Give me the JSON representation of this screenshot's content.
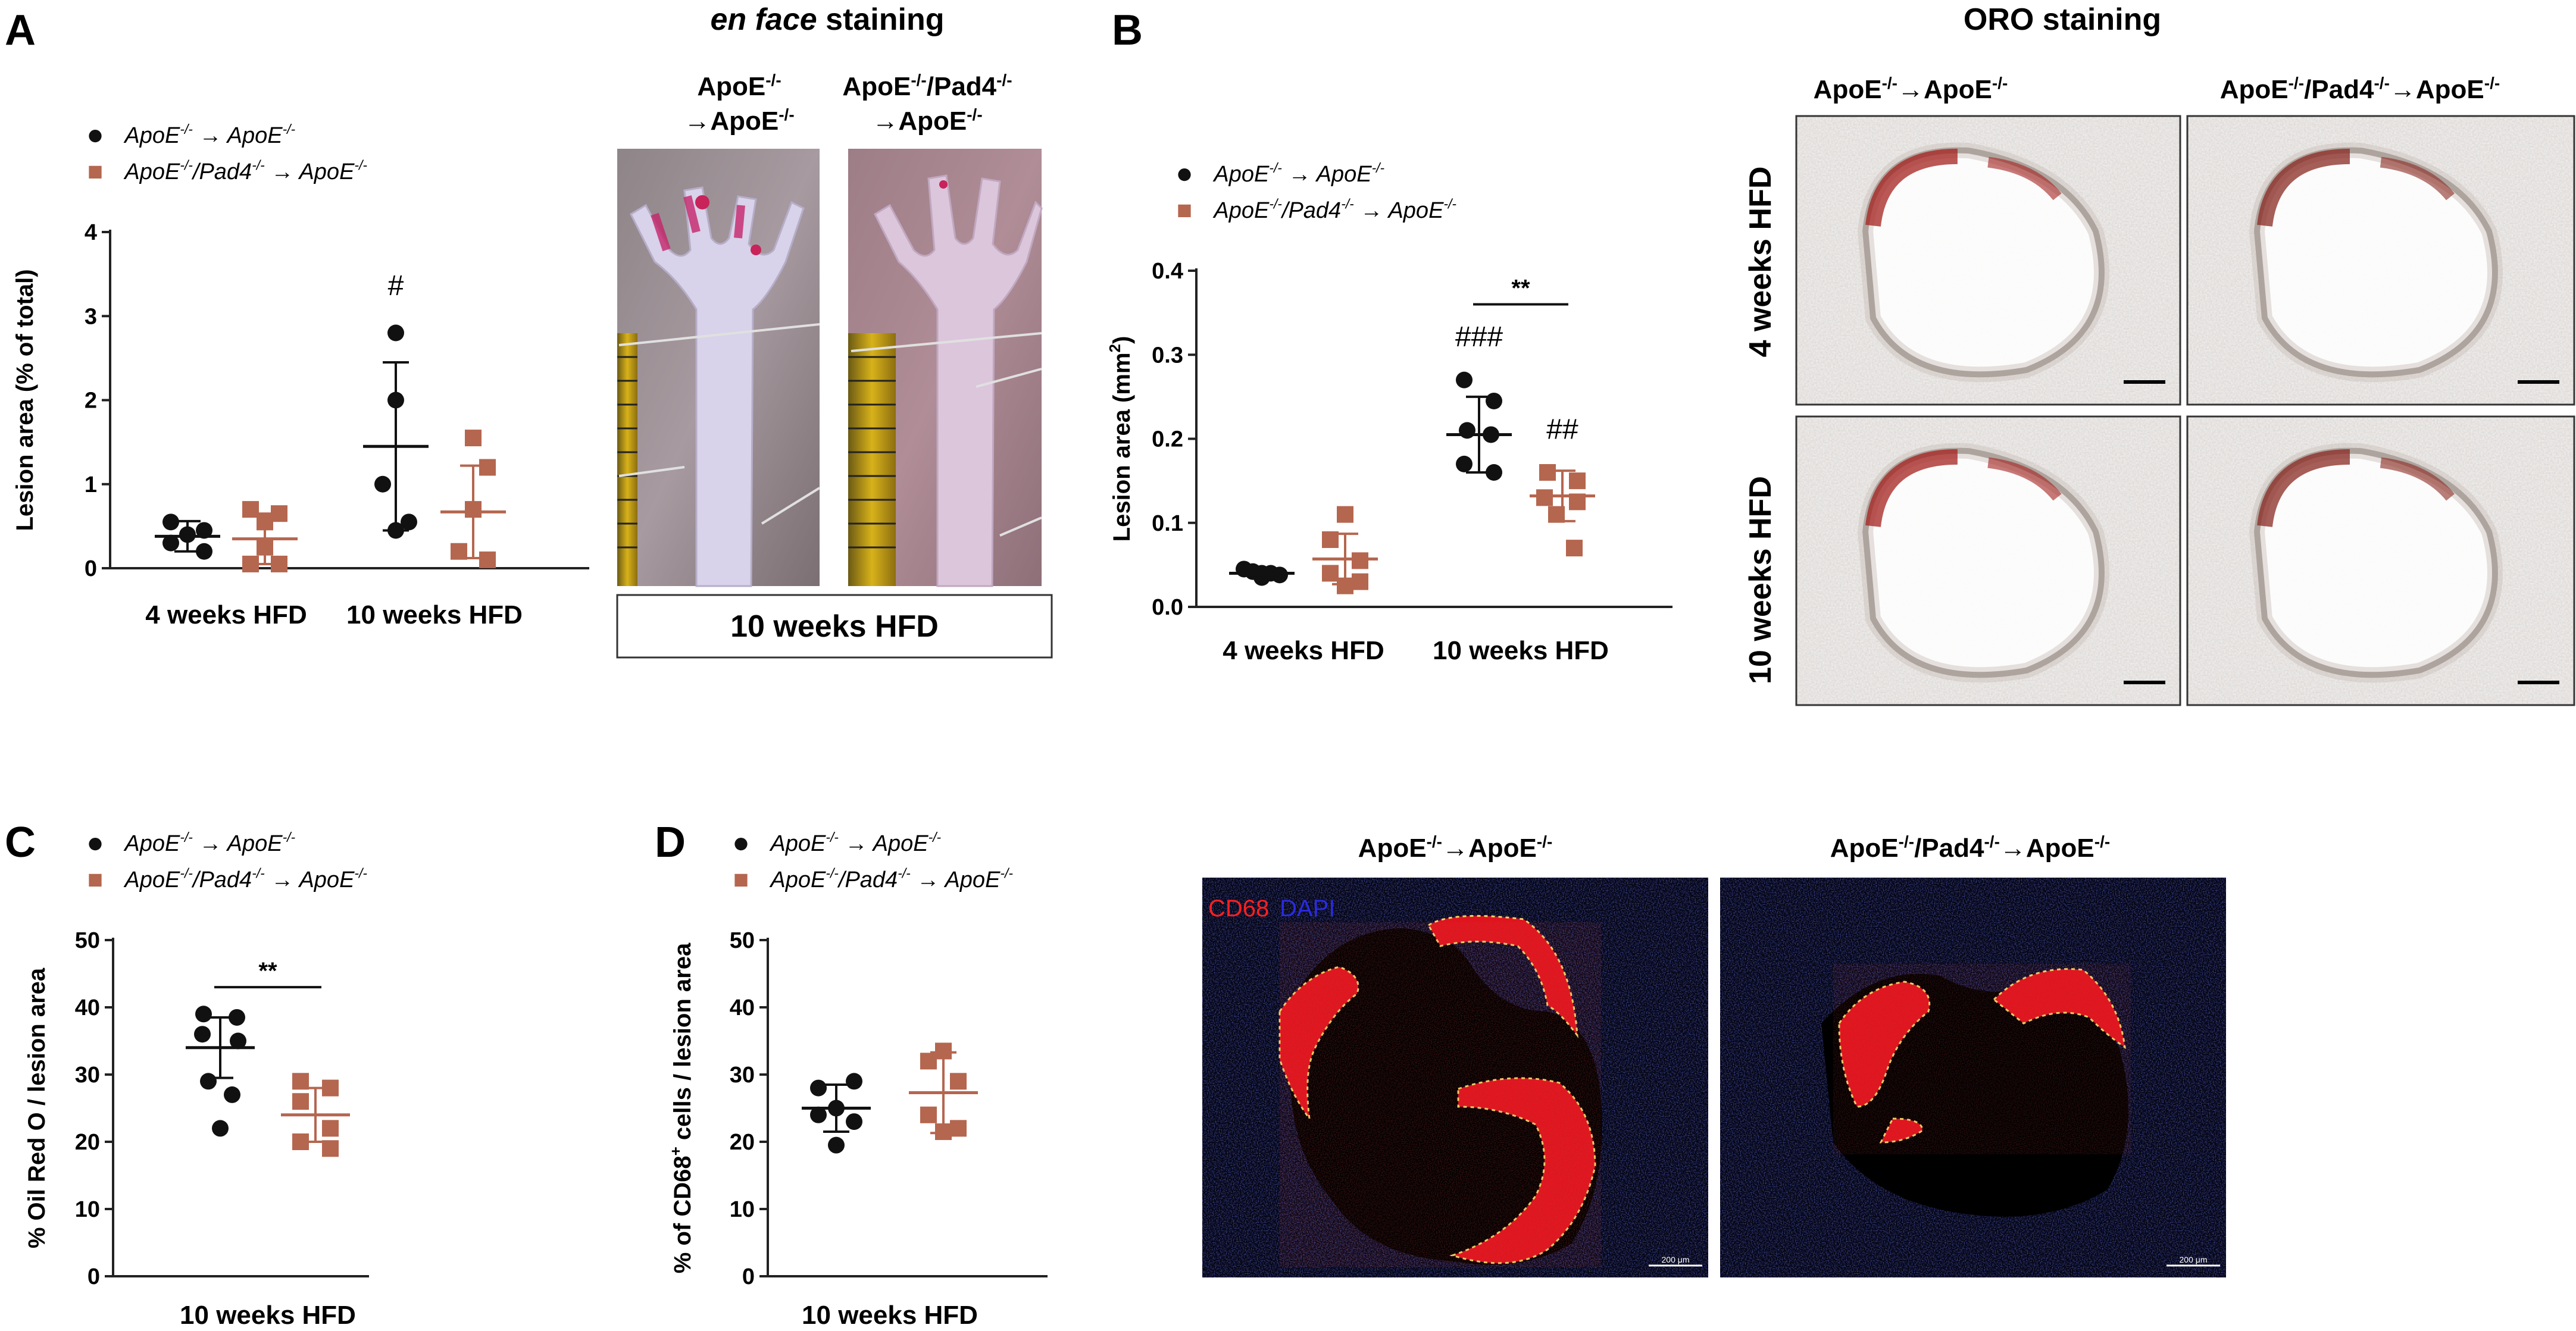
{
  "figure": {
    "panel_letters": [
      "A",
      "B",
      "C",
      "D"
    ],
    "legend": {
      "control": {
        "base": "ApoE",
        "sup": "-/-",
        "arrow": " → ",
        "base2": "ApoE",
        "sup2": "-/-"
      },
      "knockout": {
        "base": "ApoE",
        "sup": "-/-",
        "mid": "/Pad4",
        "sup_mid": "-/-",
        "arrow": " → ",
        "base2": "ApoE",
        "sup2": "-/-"
      }
    },
    "colors": {
      "control": "#111111",
      "knockout": "#b5664f"
    }
  },
  "panelA": {
    "image_title": {
      "italic": "en face",
      "normal": " staining"
    },
    "image_col1": {
      "l1": "ApoE",
      "sup1": "-/-",
      "l2": "→ApoE",
      "sup2": "-/-"
    },
    "image_col2": {
      "l1": "ApoE",
      "sup1": "-/-",
      "l1b": "/Pad4",
      "sup1b": "-/-",
      "l2": "→ApoE",
      "sup2": "-/-"
    },
    "image_caption": "10 weeks HFD"
  },
  "panelB": {
    "image_title": "ORO staining",
    "col1": {
      "a": "ApoE",
      "sa": "-/-",
      "b": "→ApoE",
      "sb": "-/-"
    },
    "col2": {
      "a": "ApoE",
      "sa": "-/-",
      "a2": "/Pad4",
      "sa2": "-/-",
      "b": "→ApoE",
      "sb": "-/-"
    },
    "row_labels": [
      "4 weeks HFD",
      "10 weeks HFD"
    ]
  },
  "panelD": {
    "col1": {
      "a": "ApoE",
      "sa": "-/-",
      "b": "→ApoE",
      "sb": "-/-"
    },
    "col2": {
      "a": "ApoE",
      "sa": "-/-",
      "a2": "/Pad4",
      "sa2": "-/-",
      "b": "→ApoE",
      "sb": "-/-"
    },
    "stain_labels": [
      "CD68",
      "DAPI"
    ],
    "scale_bar": "200 μm"
  },
  "chart_data": [
    {
      "panel": "A",
      "type": "scatter",
      "ylabel": "Lesion area (% of total)",
      "ylim": [
        0,
        4
      ],
      "yticks": [
        0,
        1,
        2,
        3,
        4
      ],
      "categories": [
        "4 weeks HFD",
        "10 weeks HFD"
      ],
      "series": [
        {
          "group": "control",
          "points": [
            [
              0.55,
              0.45,
              0.4,
              0.3,
              0.2
            ],
            [
              2.8,
              2.0,
              1.0,
              0.55,
              0.45
            ]
          ],
          "mean": [
            0.38,
            1.45
          ],
          "sd": [
            0.18,
            1.0
          ]
        },
        {
          "group": "knockout",
          "points": [
            [
              0.7,
              0.65,
              0.55,
              0.25,
              0.05,
              0.05
            ],
            [
              1.55,
              1.2,
              0.7,
              0.2,
              0.1
            ]
          ],
          "mean": [
            0.35,
            0.67
          ],
          "sd": [
            0.3,
            0.55
          ]
        }
      ],
      "annotations": [
        {
          "text": "#",
          "category": 1,
          "series": "control",
          "y": 3.25
        }
      ]
    },
    {
      "panel": "B",
      "type": "scatter",
      "ylabel": "Lesion area (mm²)",
      "ylabel_parts": {
        "base": "Lesion area (mm",
        "sup": "2",
        "end": ")"
      },
      "ylim": [
        0,
        0.4
      ],
      "yticks": [
        "0.0",
        "0.1",
        "0.2",
        "0.3",
        "0.4"
      ],
      "categories": [
        "4 weeks HFD",
        "10 weeks HFD"
      ],
      "series": [
        {
          "group": "control",
          "points": [
            [
              0.045,
              0.042,
              0.04,
              0.04,
              0.038,
              0.035
            ],
            [
              0.27,
              0.245,
              0.21,
              0.205,
              0.17,
              0.16
            ]
          ],
          "mean": [
            0.04,
            0.205
          ],
          "sd": [
            0.005,
            0.045
          ]
        },
        {
          "group": "knockout",
          "points": [
            [
              0.11,
              0.08,
              0.055,
              0.04,
              0.03,
              0.025
            ],
            [
              0.16,
              0.15,
              0.13,
              0.125,
              0.11,
              0.07
            ]
          ],
          "mean": [
            0.057,
            0.132
          ],
          "sd": [
            0.03,
            0.03
          ]
        }
      ],
      "annotations": [
        {
          "text": "###",
          "category": 1,
          "series": "control",
          "y": 0.31
        },
        {
          "text": "##",
          "category": 1,
          "series": "knockout",
          "y": 0.2
        },
        {
          "text": "**",
          "category": 1,
          "bracket": true,
          "y": 0.36
        }
      ]
    },
    {
      "panel": "C",
      "type": "scatter",
      "ylabel": "% Oil Red O / lesion area",
      "ylim": [
        0,
        50
      ],
      "yticks": [
        0,
        10,
        20,
        30,
        40,
        50
      ],
      "categories": [
        "10 weeks HFD"
      ],
      "series": [
        {
          "group": "control",
          "points": [
            [
              39,
              38.5,
              36,
              35,
              29,
              27,
              22
            ]
          ],
          "mean": [
            34
          ],
          "sd": [
            4.5
          ]
        },
        {
          "group": "knockout",
          "points": [
            [
              29,
              28,
              26,
              22,
              20,
              19
            ]
          ],
          "mean": [
            24
          ],
          "sd": [
            4
          ]
        }
      ],
      "annotations": [
        {
          "text": "**",
          "category": 0,
          "bracket": true,
          "y": 43
        }
      ]
    },
    {
      "panel": "D",
      "type": "scatter",
      "ylabel": "% of CD68⁺ cells / lesion area",
      "ylabel_parts": {
        "base": "% of CD68",
        "sup": "+",
        "end": " cells / lesion area"
      },
      "ylim": [
        0,
        50
      ],
      "yticks": [
        0,
        10,
        20,
        30,
        40,
        50
      ],
      "categories": [
        "10 weeks HFD"
      ],
      "series": [
        {
          "group": "control",
          "points": [
            [
              29,
              28,
              25,
              24,
              23,
              19.5
            ]
          ],
          "mean": [
            25
          ],
          "sd": [
            3.5
          ]
        },
        {
          "group": "knockout",
          "points": [
            [
              33.5,
              32,
              29,
              24,
              22,
              21.5
            ]
          ],
          "mean": [
            27.3
          ],
          "sd": [
            6
          ]
        }
      ],
      "annotations": []
    }
  ]
}
